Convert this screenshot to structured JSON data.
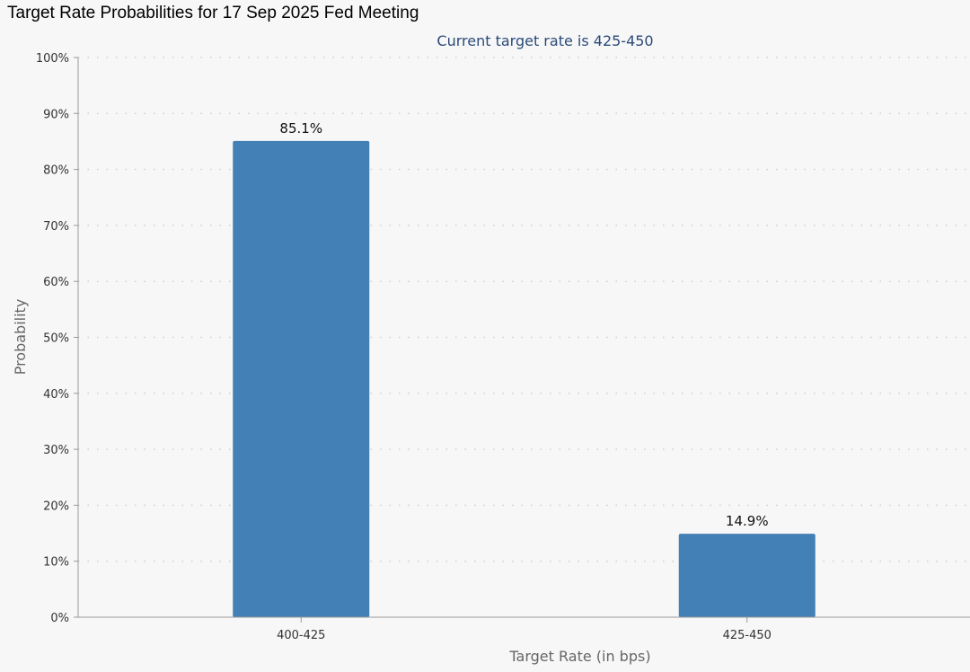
{
  "header": {
    "title": "Target Rate Probabilities for 17 Sep 2025 Fed Meeting"
  },
  "chart_data": {
    "type": "bar",
    "title": "Target Rate Probabilities for 17 Sep 2025 Fed Meeting",
    "subtitle": "Current target rate is 425-450",
    "xlabel": "Target Rate (in bps)",
    "ylabel": "Probability",
    "categories": [
      "400-425",
      "425-450"
    ],
    "values": [
      85.1,
      14.9
    ],
    "value_labels": [
      "85.1%",
      "14.9%"
    ],
    "ylim": [
      0,
      100
    ],
    "yticks": [
      0,
      10,
      20,
      30,
      40,
      50,
      60,
      70,
      80,
      90,
      100
    ],
    "ytick_labels": [
      "0%",
      "10%",
      "20%",
      "30%",
      "40%",
      "50%",
      "60%",
      "70%",
      "80%",
      "90%",
      "100%"
    ],
    "grid": true,
    "legend": "none",
    "bar_color": "#4380b6"
  }
}
